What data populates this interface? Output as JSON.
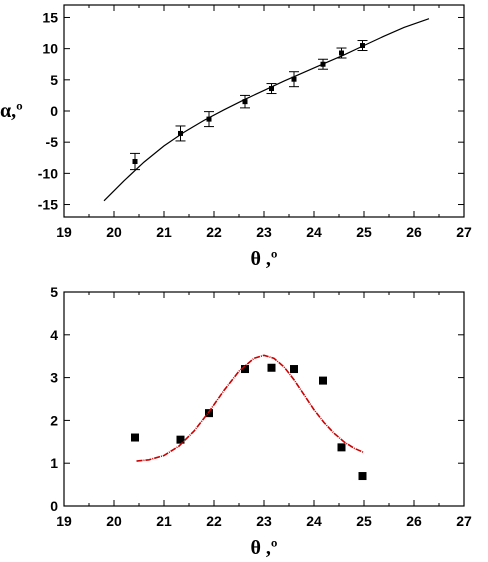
{
  "chart_data": [
    {
      "type": "scatter",
      "title": "",
      "xlabel": "θ ,º",
      "ylabel": "α,º",
      "xlim": [
        19,
        27
      ],
      "ylim": [
        -17,
        17
      ],
      "xticks": [
        19,
        20,
        21,
        22,
        23,
        24,
        25,
        26,
        27
      ],
      "yticks": [
        -15,
        -10,
        -5,
        0,
        5,
        10,
        15
      ],
      "grid": false,
      "series": [
        {
          "kind": "points",
          "marker": "square",
          "color": "#000000",
          "x": [
            20.42,
            21.33,
            21.9,
            22.62,
            23.15,
            23.6,
            24.18,
            24.55,
            24.97
          ],
          "y": [
            -8.1,
            -3.6,
            -1.3,
            1.5,
            3.6,
            5.1,
            7.5,
            9.3,
            10.5
          ],
          "yerr": [
            1.3,
            1.2,
            1.2,
            1.0,
            0.8,
            1.2,
            0.8,
            0.8,
            0.8
          ]
        },
        {
          "kind": "line",
          "color": "#000000",
          "x": [
            19.8,
            20.2,
            20.6,
            21.0,
            21.4,
            21.8,
            22.2,
            22.6,
            23.0,
            23.4,
            23.8,
            24.2,
            24.6,
            25.0,
            25.4,
            25.8,
            26.3
          ],
          "y": [
            -14.4,
            -11.2,
            -8.2,
            -5.6,
            -3.4,
            -1.5,
            0.2,
            1.8,
            3.3,
            4.8,
            6.2,
            7.6,
            9.0,
            10.5,
            12.0,
            13.4,
            14.8
          ]
        }
      ]
    },
    {
      "type": "scatter",
      "title": "",
      "xlabel": "θ ,º",
      "ylabel": "",
      "xlim": [
        19,
        27
      ],
      "ylim": [
        0,
        5
      ],
      "xticks": [
        19,
        20,
        21,
        22,
        23,
        24,
        25,
        26,
        27
      ],
      "yticks": [
        0,
        1,
        2,
        3,
        4,
        5
      ],
      "grid": false,
      "series": [
        {
          "kind": "points",
          "marker": "square",
          "color": "#000000",
          "x": [
            20.42,
            21.33,
            21.9,
            22.62,
            23.15,
            23.6,
            24.18,
            24.55,
            24.97
          ],
          "y": [
            1.6,
            1.55,
            2.17,
            3.2,
            3.23,
            3.2,
            2.93,
            1.37,
            0.7
          ]
        },
        {
          "kind": "line",
          "color": "#cc0000",
          "x": [
            20.45,
            20.7,
            21.0,
            21.3,
            21.6,
            21.9,
            22.2,
            22.5,
            22.8,
            23.0,
            23.2,
            23.4,
            23.6,
            23.8,
            24.0,
            24.2,
            24.4,
            24.6,
            24.8,
            25.0
          ],
          "y": [
            1.05,
            1.08,
            1.18,
            1.4,
            1.75,
            2.2,
            2.7,
            3.15,
            3.45,
            3.52,
            3.45,
            3.25,
            2.95,
            2.6,
            2.25,
            1.95,
            1.7,
            1.5,
            1.35,
            1.25
          ]
        }
      ]
    }
  ]
}
